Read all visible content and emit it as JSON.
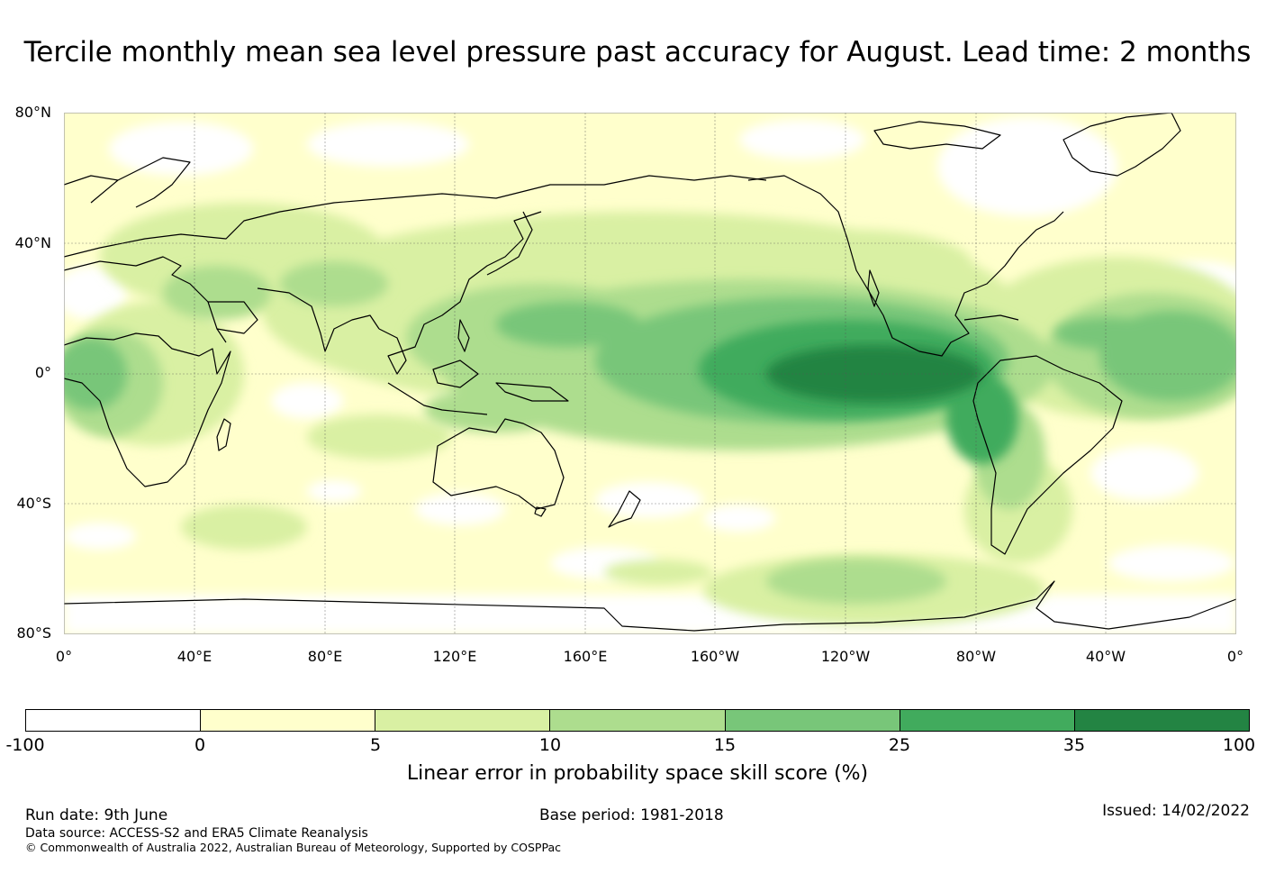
{
  "title": "Tercile monthly mean sea level pressure past accuracy for August. Lead time: 2 months",
  "map": {
    "lat_labels": [
      "80°N",
      "40°N",
      "0°",
      "40°S",
      "80°S"
    ],
    "lon_labels": [
      "0°",
      "40°E",
      "80°E",
      "120°E",
      "160°E",
      "160°W",
      "120°W",
      "80°W",
      "40°W",
      "0°"
    ]
  },
  "colorbar": {
    "ticks": [
      "-100",
      "0",
      "5",
      "10",
      "15",
      "25",
      "35",
      "100"
    ],
    "colors": [
      "#ffffff",
      "#ffffcc",
      "#d9f0a3",
      "#addd8e",
      "#78c679",
      "#41ab5d",
      "#238443"
    ],
    "label": "Linear error in probability space skill score (%)"
  },
  "footer": {
    "run_date": "Run date: 9th June",
    "base_period": "Base period: 1981-2018",
    "issued": "Issued: 14/02/2022",
    "data_source": "Data source: ACCESS-S2 and ERA5 Climate Reanalysis",
    "copyright": "© Commonwealth of Australia 2022, Australian Bureau of Meteorology, Supported by COSPPac"
  }
}
